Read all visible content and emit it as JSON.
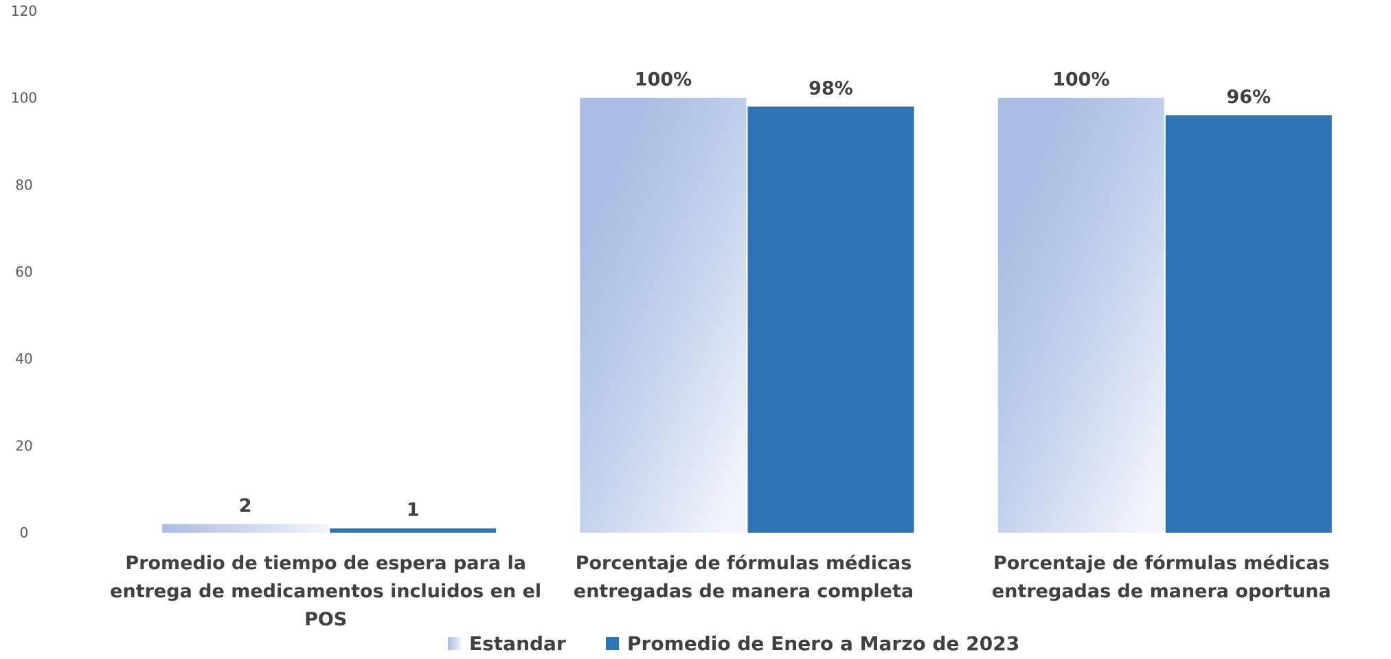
{
  "chart_data": {
    "type": "bar",
    "categories": [
      [
        "Promedio de tiempo de espera para la",
        "entrega de medicamentos incluidos en el",
        "POS"
      ],
      [
        "Porcentaje de fórmulas médicas",
        "entregadas de manera completa"
      ],
      [
        "Porcentaje de fórmulas médicas",
        "entregadas de manera oportuna"
      ]
    ],
    "series": [
      {
        "name": "Estandar",
        "values": [
          2,
          100,
          100
        ],
        "labels": [
          "2",
          "100%",
          "100%"
        ],
        "color": "#a9bde3"
      },
      {
        "name": "Promedio de Enero a Marzo de 2023",
        "values": [
          1,
          98,
          96
        ],
        "labels": [
          "1",
          "98%",
          "96%"
        ],
        "color": "#2e74b5"
      }
    ],
    "ylim": [
      0,
      120
    ],
    "yticks": [
      "0",
      "20",
      "40",
      "60",
      "80",
      "100",
      "120"
    ],
    "grid": false,
    "legend_position": "bottom"
  }
}
